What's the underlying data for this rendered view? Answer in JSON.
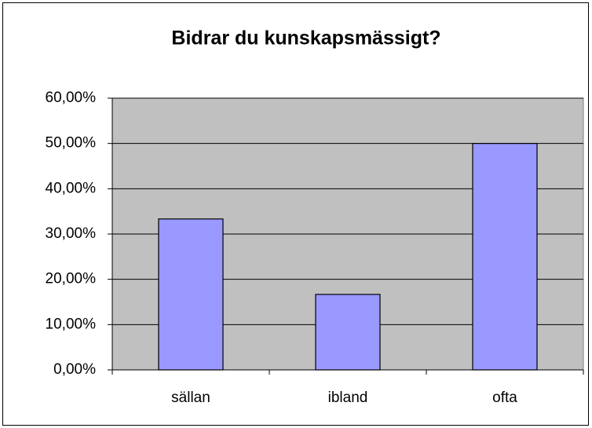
{
  "chart_data": {
    "type": "bar",
    "title": "Bidrar du kunskapsmässigt?",
    "categories": [
      "sällan",
      "ibland",
      "ofta"
    ],
    "values": [
      33.33,
      16.67,
      50
    ],
    "color": "#9999ff",
    "ylim": [
      0,
      60
    ],
    "yticks": [
      {
        "value": 0,
        "label": "0,00%"
      },
      {
        "value": 10,
        "label": "10,00%"
      },
      {
        "value": 20,
        "label": "20,00%"
      },
      {
        "value": 30,
        "label": "30,00%"
      },
      {
        "value": 40,
        "label": "40,00%"
      },
      {
        "value": 50,
        "label": "50,00%"
      },
      {
        "value": 60,
        "label": "60,00%"
      }
    ],
    "grid": true
  }
}
